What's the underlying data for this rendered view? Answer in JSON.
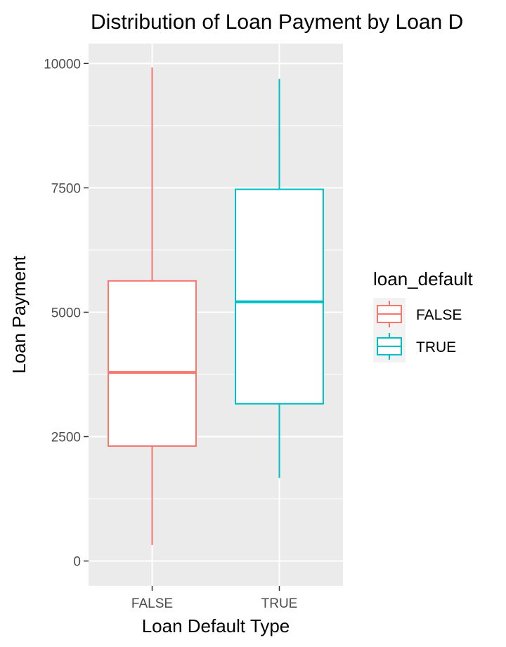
{
  "chart_data": {
    "type": "boxplot",
    "title": "Distribution of Loan Payment by Loan D",
    "xlabel": "Loan Default Type",
    "ylabel": "Loan Payment",
    "categories": [
      "FALSE",
      "TRUE"
    ],
    "ylim": [
      -500,
      10400
    ],
    "yticks": [
      0,
      2500,
      5000,
      7500,
      10000
    ],
    "grid": true,
    "legend": {
      "title": "loan_default",
      "placement": "right",
      "entries": [
        "FALSE",
        "TRUE"
      ]
    },
    "series": [
      {
        "category": "FALSE",
        "color": "#F8766D",
        "min": 320,
        "q1": 2310,
        "median": 3790,
        "q3": 5630,
        "max": 9920
      },
      {
        "category": "TRUE",
        "color": "#00BFC4",
        "min": 1670,
        "q1": 3160,
        "median": 5210,
        "q3": 7470,
        "max": 9690
      }
    ]
  }
}
